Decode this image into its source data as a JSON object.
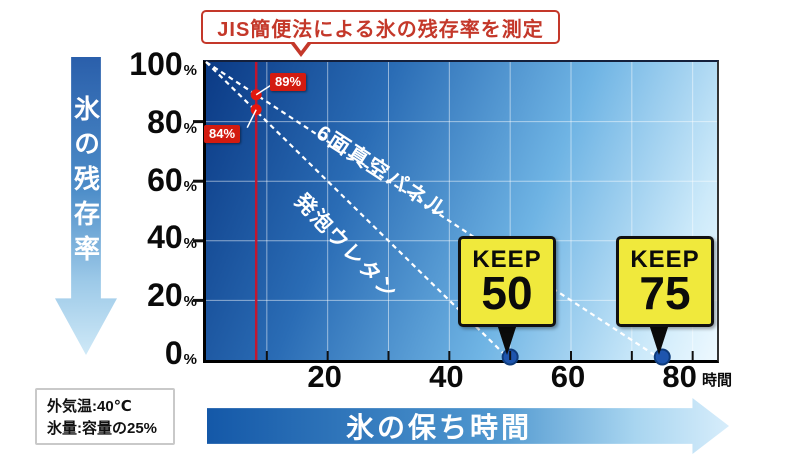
{
  "title_bubble": {
    "text": "JIS簡便法による氷の残存率を測定"
  },
  "y_axis_arrow": {
    "label": "氷の残存率"
  },
  "x_axis_arrow": {
    "label": "氷の保ち時間"
  },
  "x_unit": "時間",
  "conditions_box": {
    "line1": "外気温:40℃",
    "line2": "氷量:容量の25%"
  },
  "series_labels": {
    "vacuum": "6面真空パネル",
    "foam": "発泡ウレタン"
  },
  "measure_labels": {
    "vacuum": "89%",
    "foam": "84%"
  },
  "badges": [
    {
      "word": "KEEP",
      "number": "50"
    },
    {
      "word": "KEEP",
      "number": "75"
    }
  ],
  "colors": {
    "accent_red": "#c4382a",
    "measure_line_red": "#cf1126",
    "label_box_red": "#d31b10",
    "badge_yellow": "#f0e93c",
    "end_dot_blue": "#1e55ae",
    "series_line_white": "#ffffff"
  },
  "chart_data": {
    "type": "line",
    "title": "JIS簡便法による氷の残存率を測定",
    "xlabel": "氷の保ち時間（時間）",
    "ylabel": "氷の残存率（%）",
    "xlim": [
      0,
      84
    ],
    "ylim": [
      0,
      100
    ],
    "x_ticks": [
      20,
      40,
      60,
      80
    ],
    "x_minor_ticks": [
      10,
      20,
      30,
      40,
      50,
      60,
      70,
      80
    ],
    "y_ticks": [
      0,
      20,
      40,
      60,
      80,
      100
    ],
    "grid": true,
    "legend_position": "on-line",
    "measured_at_hours": 8.25,
    "series": [
      {
        "name": "6面真空パネル",
        "x": [
          0,
          75
        ],
        "y": [
          100,
          0
        ],
        "keep_hours": 75,
        "measured_pct": 89,
        "badge": "KEEP 75"
      },
      {
        "name": "発泡ウレタン",
        "x": [
          0,
          50
        ],
        "y": [
          100,
          0
        ],
        "keep_hours": 50,
        "measured_pct": 84,
        "badge": "KEEP 50"
      }
    ]
  }
}
